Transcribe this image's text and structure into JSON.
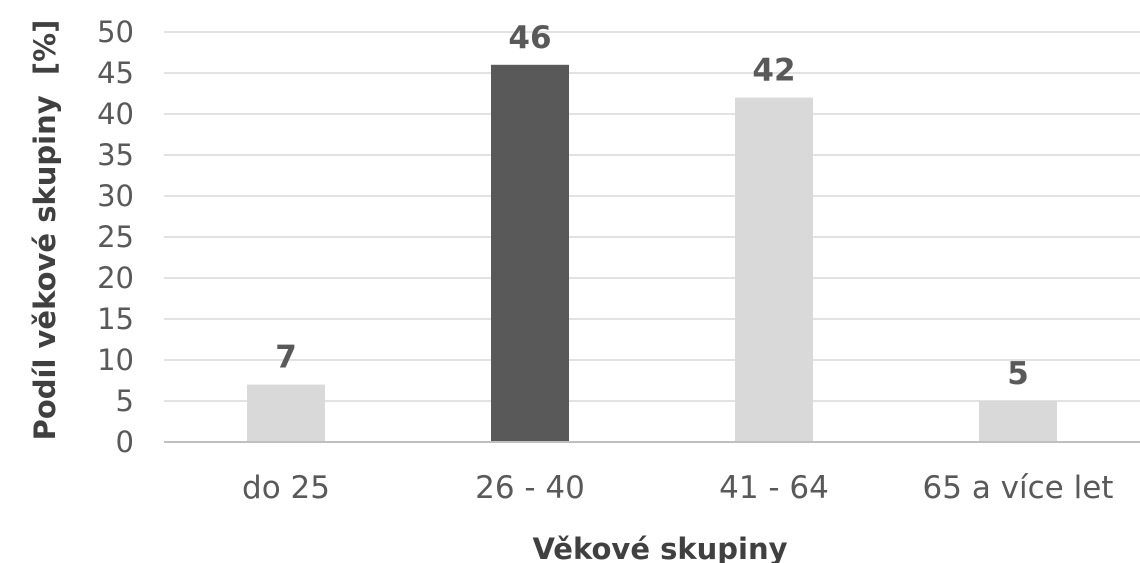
{
  "chart_data": {
    "type": "bar",
    "title": "",
    "xlabel": "Věkové skupiny",
    "ylabel": "Podíl věkové skupiny  [%]",
    "categories": [
      "do 25",
      "26 - 40",
      "41 - 64",
      "65 a více let"
    ],
    "values": [
      7,
      46,
      42,
      5
    ],
    "data_labels": [
      "7",
      "46",
      "42",
      "5"
    ],
    "bar_colors": [
      "#d9d9d9",
      "#595959",
      "#d9d9d9",
      "#d9d9d9"
    ],
    "ylim": [
      0,
      50
    ],
    "yticks": [
      "0",
      "5",
      "10",
      "15",
      "20",
      "25",
      "30",
      "35",
      "40",
      "45",
      "50"
    ],
    "grid": true,
    "legend": "none"
  }
}
